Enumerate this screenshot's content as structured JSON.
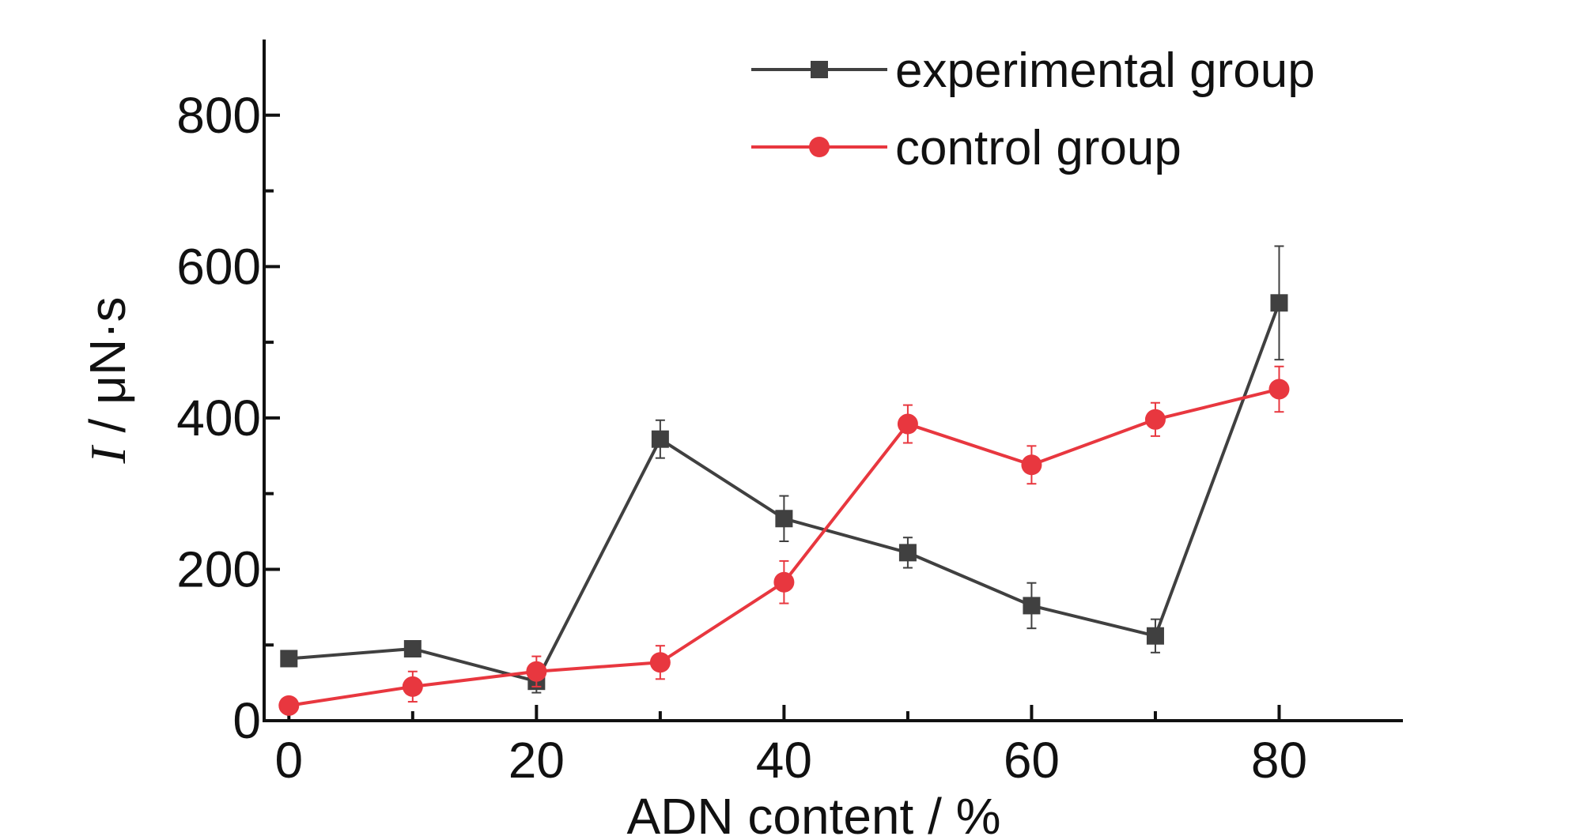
{
  "chart_data": {
    "type": "line",
    "xlabel": "ADN content / %",
    "ylabel_italic": "I",
    "ylabel_rest": " / μN·s",
    "xlim": [
      -2,
      90
    ],
    "ylim": [
      0,
      900
    ],
    "x_ticks": [
      0,
      20,
      40,
      60,
      80
    ],
    "x_minor_ticks": [
      10,
      30,
      50,
      70
    ],
    "y_ticks": [
      0,
      200,
      400,
      600,
      800
    ],
    "y_minor_ticks": [
      100,
      300,
      500,
      700
    ],
    "x": [
      0,
      10,
      20,
      30,
      40,
      50,
      60,
      70,
      80
    ],
    "grid": false,
    "legend_position": "top-center",
    "series": [
      {
        "name": "experimental group",
        "color": "#404040",
        "marker": "square",
        "values": [
          82,
          95,
          52,
          372,
          267,
          222,
          152,
          112,
          552
        ],
        "errors": [
          10,
          10,
          15,
          25,
          30,
          20,
          30,
          22,
          75
        ]
      },
      {
        "name": "control group",
        "color": "#e8373f",
        "marker": "circle",
        "values": [
          20,
          45,
          65,
          77,
          183,
          392,
          338,
          398,
          438
        ],
        "errors": [
          5,
          20,
          20,
          22,
          28,
          25,
          25,
          22,
          30
        ]
      }
    ]
  }
}
